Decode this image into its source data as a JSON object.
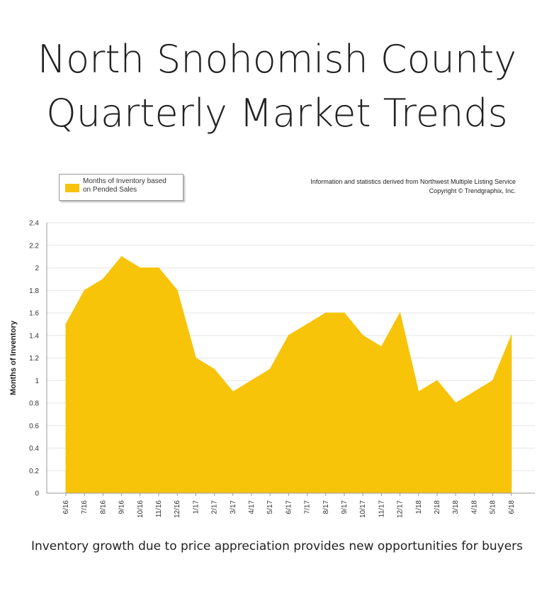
{
  "title_line1": "North Snohomish County",
  "title_line2": "Quarterly Market Trends",
  "source_line1": "Information and statistics derived from Northwest Multiple Listing Service",
  "source_line2": "Copyright © Trendgraphix, Inc.",
  "caption": "Inventory growth due to price appreciation provides new opportunities for buyers",
  "colors": {
    "area": "#f7c40a",
    "grid": "#e6e6e6",
    "axis": "#999999"
  },
  "chart_data": {
    "type": "area",
    "title": "",
    "xlabel": "",
    "ylabel": "Months of Inventory",
    "ylim": [
      0,
      2.4
    ],
    "yticks": [
      "0",
      "0.2",
      "0.4",
      "0.6",
      "0.8",
      "1",
      "1.2",
      "1.4",
      "1.6",
      "1.8",
      "2",
      "2.2",
      "2.4"
    ],
    "grid": true,
    "legend_position": "top-left",
    "categories": [
      "6/16",
      "7/16",
      "8/16",
      "9/16",
      "10/16",
      "11/16",
      "12/16",
      "1/17",
      "2/17",
      "3/17",
      "4/17",
      "5/17",
      "6/17",
      "7/17",
      "8/17",
      "9/17",
      "10/17",
      "11/17",
      "12/17",
      "1/18",
      "2/18",
      "3/18",
      "4/18",
      "5/18",
      "6/18"
    ],
    "series": [
      {
        "name": "Months of Inventory based on Pended Sales",
        "legend_lines": [
          "Months of Inventory based",
          "on Pended Sales"
        ],
        "values": [
          1.5,
          1.8,
          1.9,
          2.1,
          2.0,
          2.0,
          1.8,
          1.2,
          1.1,
          0.9,
          1.0,
          1.1,
          1.4,
          1.5,
          1.6,
          1.6,
          1.4,
          1.3,
          1.6,
          0.9,
          1.0,
          0.8,
          0.9,
          1.0,
          1.4
        ]
      }
    ]
  }
}
